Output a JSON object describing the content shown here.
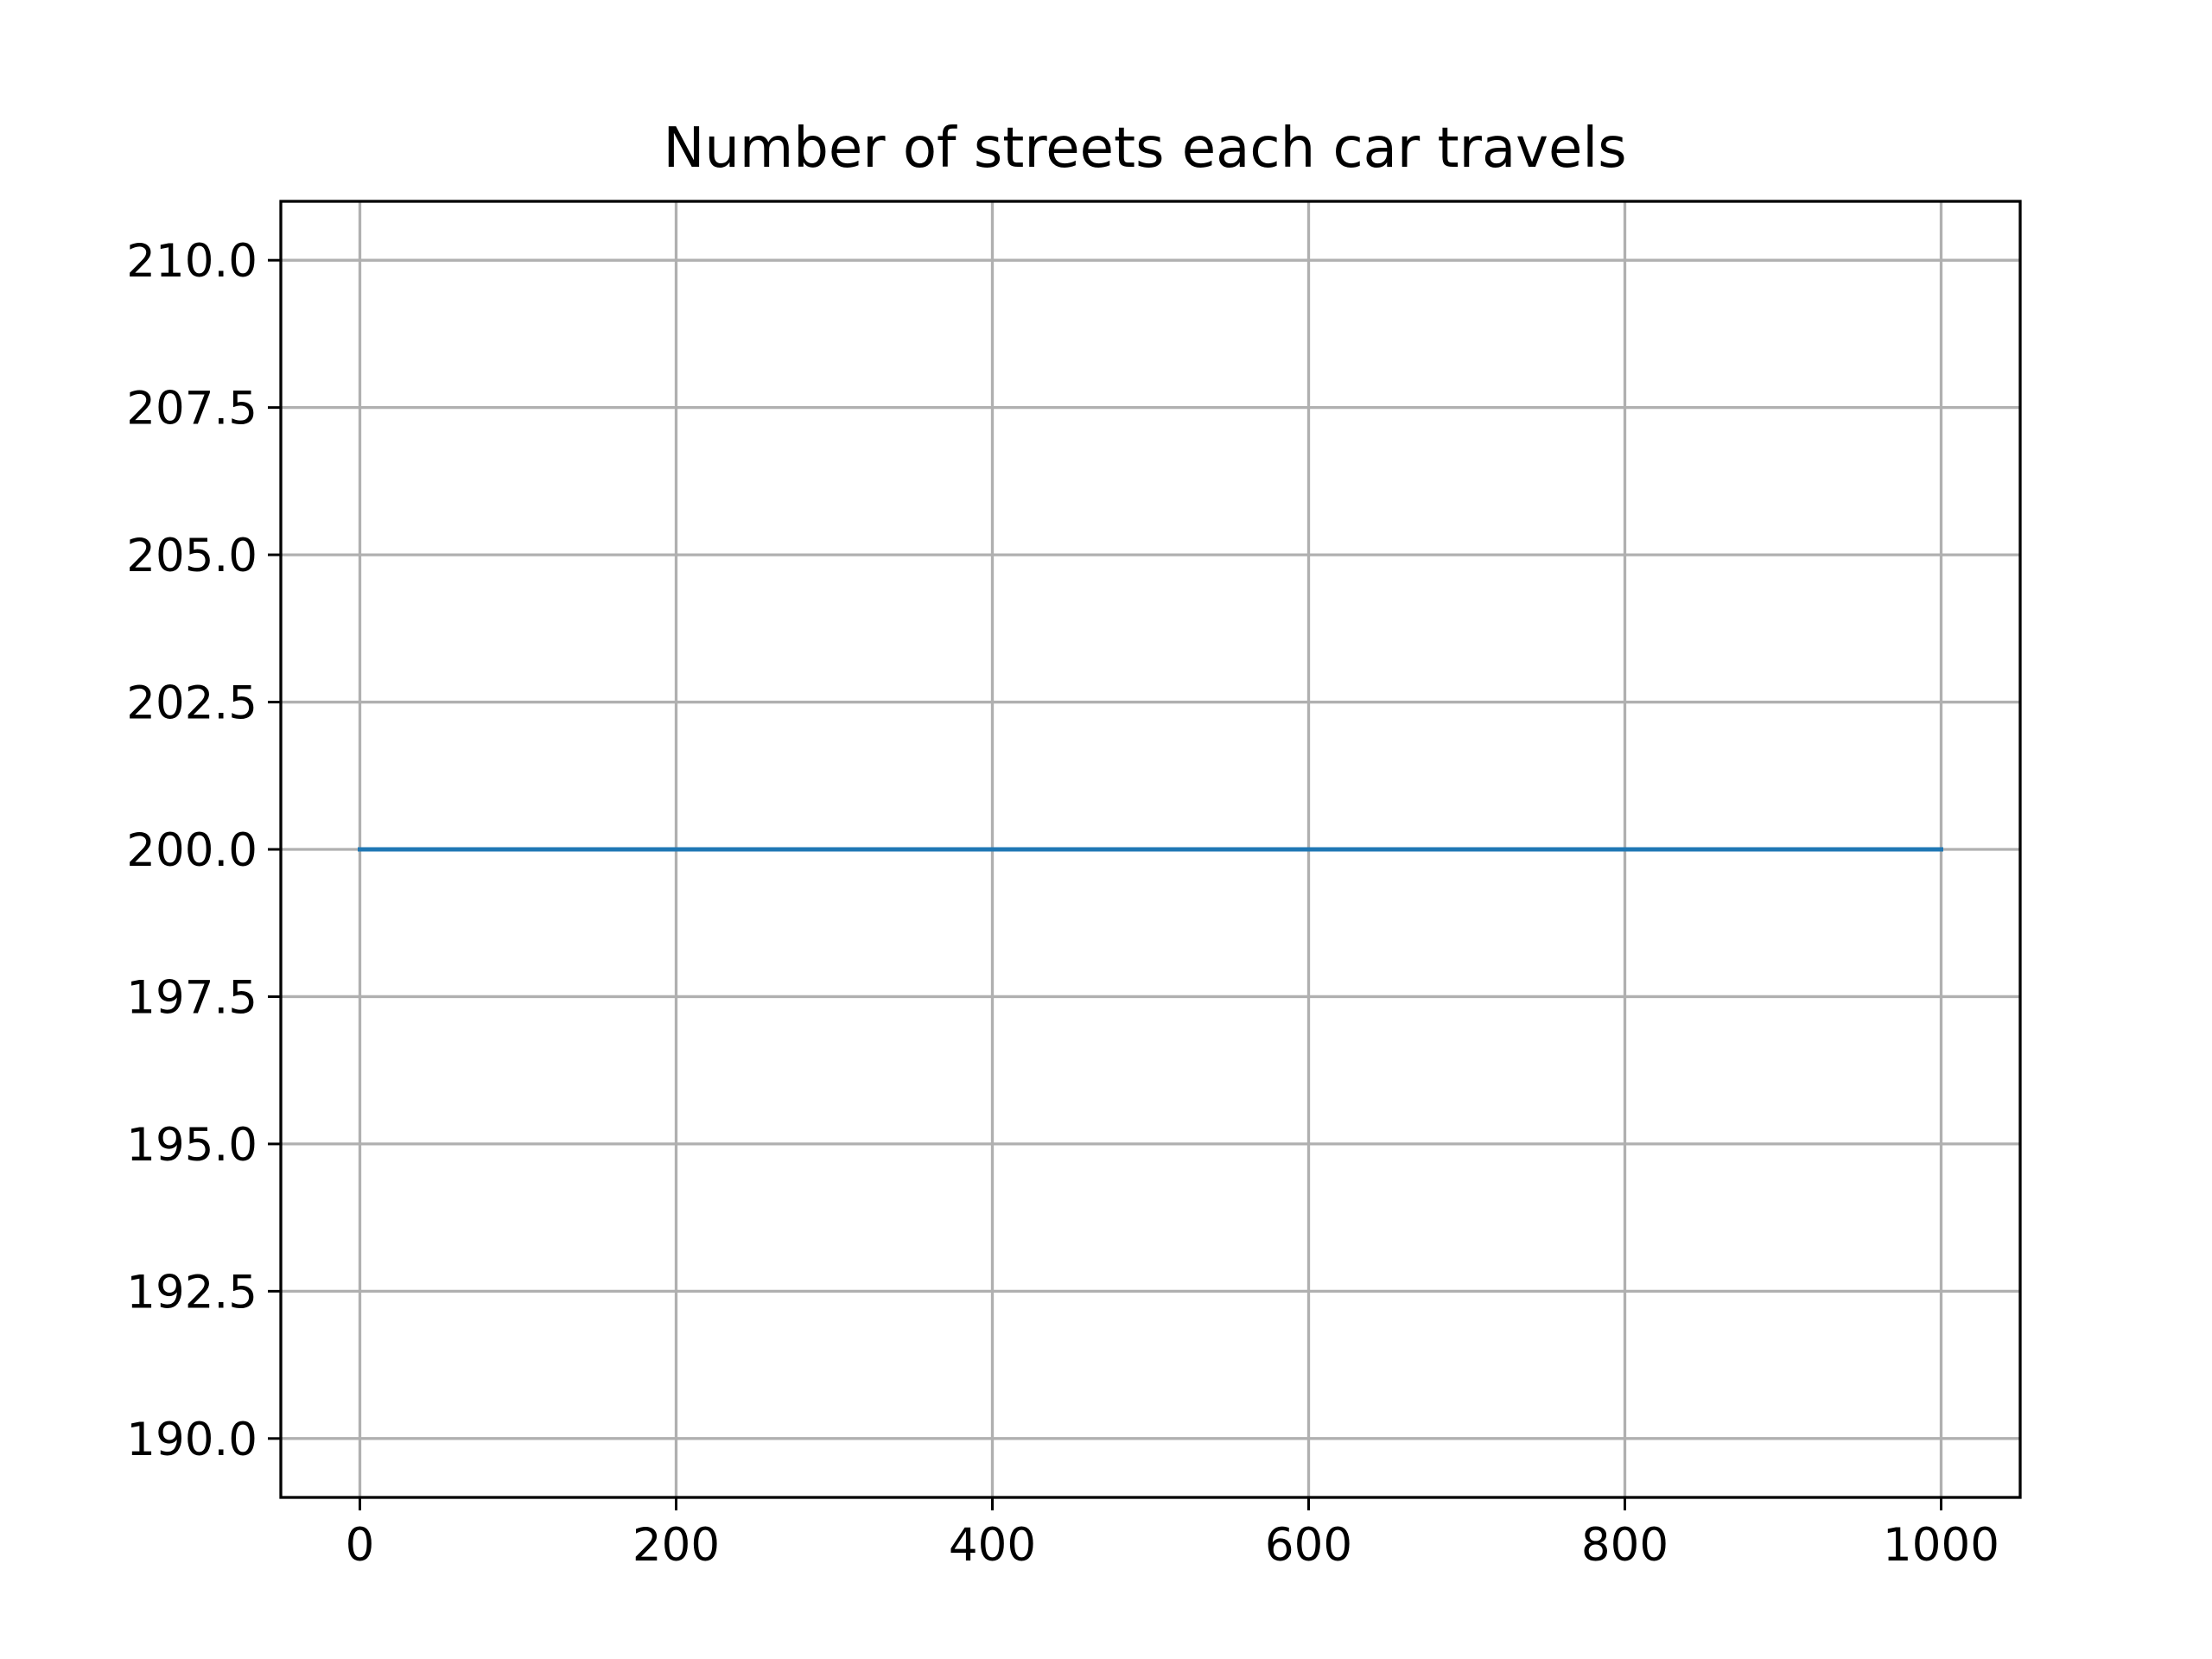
{
  "chart_data": {
    "type": "line",
    "title": "Number of streets each car travels",
    "xlabel": "",
    "ylabel": "",
    "xlim": [
      -50,
      1050
    ],
    "ylim": [
      189,
      211
    ],
    "x_ticks": [
      0,
      200,
      400,
      600,
      800,
      1000
    ],
    "x_tick_labels": [
      "0",
      "200",
      "400",
      "600",
      "800",
      "1000"
    ],
    "y_ticks": [
      190.0,
      192.5,
      195.0,
      197.5,
      200.0,
      202.5,
      205.0,
      207.5,
      210.0
    ],
    "y_tick_labels": [
      "190.0",
      "192.5",
      "195.0",
      "197.5",
      "200.0",
      "202.5",
      "205.0",
      "207.5",
      "210.0"
    ],
    "grid": true,
    "series": [
      {
        "color": "#1f77b4",
        "x": [
          0,
          1000
        ],
        "y": [
          200,
          200
        ]
      }
    ]
  }
}
